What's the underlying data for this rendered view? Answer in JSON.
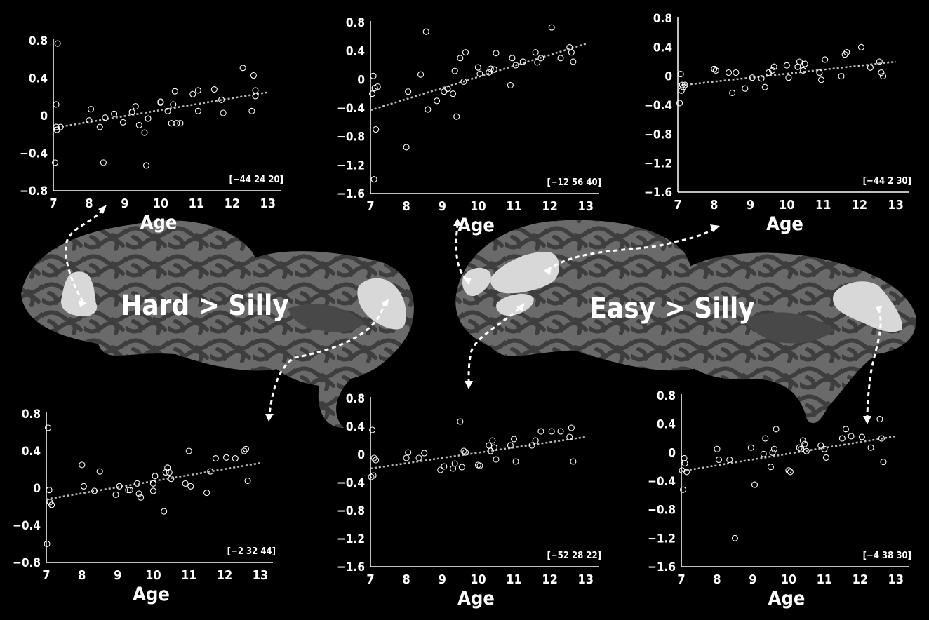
{
  "contrasts": {
    "left": "Hard > Silly",
    "right": "Easy > Silly"
  },
  "colors": {
    "background": "#000000",
    "brain_surface": "#5a5a5a",
    "brain_gyri": "#3a3a3a",
    "roi_fill": "#d8d8d8",
    "axis": "#ffffff",
    "fit_line": "#bbbbbb"
  },
  "chart_data": [
    {
      "type": "scatter",
      "label": "[−44 24 20]",
      "xlabel": "Age",
      "ylabel": "",
      "xlim": [
        7,
        13.2
      ],
      "ylim": [
        -0.8,
        0.8
      ],
      "xticks": [
        "7",
        "8",
        "9",
        "10",
        "11",
        "12",
        "13"
      ],
      "yticks": [
        "0.8",
        "0.4",
        "0",
        "−0.4",
        "−0.8"
      ],
      "fit": {
        "x": [
          7,
          13
        ],
        "y": [
          -0.13,
          0.25
        ]
      },
      "x": [
        7.05,
        7.08,
        7.08,
        7.1,
        7.12,
        7.2,
        8.0,
        8.05,
        8.3,
        8.4,
        8.45,
        8.7,
        8.95,
        9.2,
        9.3,
        9.4,
        9.55,
        9.6,
        9.65,
        10.0,
        10.0,
        10.2,
        10.3,
        10.35,
        10.4,
        10.45,
        10.55,
        10.9,
        11.05,
        11.05,
        11.5,
        11.7,
        11.75,
        12.3,
        12.55,
        12.6,
        12.65,
        12.65
      ],
      "y": [
        -0.5,
        0.12,
        -0.12,
        -0.15,
        0.77,
        -0.12,
        -0.05,
        0.07,
        -0.12,
        -0.5,
        -0.02,
        0.02,
        -0.07,
        0.04,
        0.1,
        -0.1,
        -0.18,
        -0.53,
        -0.03,
        0.15,
        0.14,
        0.05,
        -0.08,
        0.12,
        0.26,
        -0.08,
        -0.08,
        0.23,
        0.27,
        0.05,
        0.28,
        0.17,
        0.03,
        0.51,
        0.05,
        0.43,
        0.27,
        0.21
      ]
    },
    {
      "type": "scatter",
      "label": "[−12 56 40]",
      "xlabel": "Age",
      "ylabel": "",
      "xlim": [
        7,
        13.2
      ],
      "ylim": [
        -1.6,
        0.8
      ],
      "xticks": [
        "7",
        "8",
        "9",
        "10",
        "11",
        "12",
        "13"
      ],
      "yticks": [
        "0.8",
        "0.4",
        "0",
        "−0.4",
        "−0.8",
        "−1.2",
        "−1.6"
      ],
      "fit": {
        "x": [
          7,
          13
        ],
        "y": [
          -0.43,
          0.5
        ]
      },
      "x": [
        7.05,
        7.08,
        7.1,
        7.12,
        7.15,
        7.2,
        8.0,
        8.05,
        8.4,
        8.55,
        8.6,
        8.85,
        9.05,
        9.15,
        9.3,
        9.35,
        9.4,
        9.5,
        9.6,
        9.65,
        10.0,
        10.05,
        10.3,
        10.35,
        10.45,
        10.5,
        10.9,
        10.95,
        11.05,
        11.25,
        11.6,
        11.65,
        11.75,
        12.05,
        12.3,
        12.55,
        12.6,
        12.65
      ],
      "y": [
        -0.2,
        0.05,
        -1.4,
        -0.12,
        -0.7,
        -0.1,
        -0.95,
        -0.17,
        0.07,
        0.67,
        -0.42,
        -0.3,
        -0.17,
        -0.13,
        -0.2,
        0.12,
        -0.52,
        0.3,
        -0.03,
        0.38,
        0.17,
        0.08,
        0.1,
        0.15,
        0.14,
        0.37,
        -0.08,
        0.3,
        0.2,
        0.25,
        0.38,
        0.24,
        0.3,
        0.73,
        0.3,
        0.45,
        0.38,
        0.25
      ]
    },
    {
      "type": "scatter",
      "label": "[−44 2 30]",
      "xlabel": "Age",
      "ylabel": "",
      "xlim": [
        7,
        13.2
      ],
      "ylim": [
        -1.6,
        0.8
      ],
      "xticks": [
        "7",
        "8",
        "9",
        "10",
        "11",
        "12",
        "13"
      ],
      "yticks": [
        "0.8",
        "0.4",
        "0",
        "−0.4",
        "−0.8",
        "−1.2",
        "−1.6"
      ],
      "fit": {
        "x": [
          7,
          13
        ],
        "y": [
          -0.13,
          0.2
        ]
      },
      "x": [
        7.05,
        7.08,
        7.1,
        7.12,
        7.15,
        7.2,
        8.0,
        8.05,
        8.4,
        8.5,
        8.6,
        8.85,
        9.05,
        9.3,
        9.4,
        9.5,
        9.6,
        9.65,
        10.0,
        10.05,
        10.3,
        10.35,
        10.45,
        10.5,
        10.9,
        10.95,
        11.05,
        11.5,
        11.6,
        11.65,
        12.05,
        12.3,
        12.55,
        12.6,
        12.65
      ],
      "y": [
        -0.37,
        0.03,
        -0.2,
        -0.12,
        -0.15,
        -0.12,
        0.1,
        0.08,
        0.05,
        -0.23,
        0.05,
        -0.17,
        -0.02,
        -0.03,
        -0.15,
        0.05,
        0.08,
        0.13,
        0.15,
        -0.02,
        0.13,
        0.2,
        0.08,
        0.17,
        0.05,
        -0.05,
        0.23,
        0.0,
        0.3,
        0.33,
        0.4,
        0.12,
        0.2,
        0.05,
        0.0
      ]
    },
    {
      "type": "scatter",
      "label": "[−2 32 44]",
      "xlabel": "Age",
      "ylabel": "",
      "xlim": [
        7,
        13.2
      ],
      "ylim": [
        -0.8,
        0.8
      ],
      "xticks": [
        "7",
        "8",
        "9",
        "10",
        "11",
        "12",
        "13"
      ],
      "yticks": [
        "0.8",
        "0.4",
        "0",
        "−0.4",
        "−0.8"
      ],
      "fit": {
        "x": [
          7,
          13
        ],
        "y": [
          -0.12,
          0.27
        ]
      },
      "x": [
        7.02,
        7.05,
        7.08,
        7.1,
        7.15,
        8.0,
        8.05,
        8.35,
        8.5,
        8.95,
        9.05,
        9.3,
        9.35,
        9.55,
        9.6,
        9.65,
        10.0,
        10.0,
        10.05,
        10.3,
        10.35,
        10.4,
        10.45,
        10.5,
        10.9,
        11.0,
        11.05,
        11.5,
        11.6,
        11.75,
        12.05,
        12.3,
        12.55,
        12.6,
        12.65
      ],
      "y": [
        -0.6,
        0.65,
        -0.02,
        -0.15,
        -0.18,
        0.25,
        0.02,
        -0.03,
        0.18,
        -0.07,
        0.02,
        -0.02,
        -0.02,
        0.05,
        -0.06,
        -0.1,
        0.05,
        -0.03,
        0.13,
        -0.25,
        0.17,
        0.22,
        0.17,
        0.1,
        0.05,
        0.4,
        0.02,
        -0.05,
        0.18,
        0.32,
        0.33,
        0.32,
        0.4,
        0.42,
        0.08
      ]
    },
    {
      "type": "scatter",
      "label": "[−52 28 22]",
      "xlabel": "Age",
      "ylabel": "",
      "xlim": [
        7,
        13.2
      ],
      "ylim": [
        -1.6,
        0.8
      ],
      "xticks": [
        "7",
        "8",
        "9",
        "10",
        "11",
        "12",
        "13"
      ],
      "yticks": [
        "0.8",
        "0.4",
        "0",
        "−0.4",
        "−0.8",
        "−1.2",
        "−1.6"
      ],
      "fit": {
        "x": [
          7,
          13
        ],
        "y": [
          -0.2,
          0.25
        ]
      },
      "x": [
        7.02,
        7.05,
        7.08,
        7.1,
        7.15,
        8.0,
        8.05,
        8.35,
        8.5,
        8.95,
        9.05,
        9.3,
        9.35,
        9.5,
        9.55,
        9.6,
        9.65,
        10.0,
        10.05,
        10.3,
        10.35,
        10.4,
        10.45,
        10.5,
        10.9,
        11.0,
        11.05,
        11.5,
        11.6,
        11.75,
        12.05,
        12.3,
        12.55,
        12.6,
        12.65
      ],
      "y": [
        -0.32,
        0.35,
        -0.3,
        -0.05,
        -0.08,
        -0.05,
        0.03,
        -0.05,
        0.02,
        -0.22,
        -0.17,
        -0.2,
        -0.13,
        0.47,
        -0.18,
        0.05,
        0.03,
        -0.15,
        -0.16,
        0.13,
        0.05,
        0.2,
        0.1,
        -0.07,
        0.13,
        0.22,
        -0.1,
        0.13,
        0.2,
        0.33,
        0.33,
        0.33,
        0.25,
        0.38,
        -0.1
      ]
    },
    {
      "type": "scatter",
      "label": "[−4 38 30]",
      "xlabel": "Age",
      "ylabel": "",
      "xlim": [
        7,
        13.2
      ],
      "ylim": [
        -1.6,
        0.8
      ],
      "xticks": [
        "7",
        "8",
        "9",
        "10",
        "11",
        "12",
        "13"
      ],
      "yticks": [
        "0.8",
        "0.4",
        "0",
        "−0.4",
        "−0.8",
        "−1.2",
        "−1.6"
      ],
      "fit": {
        "x": [
          7,
          13
        ],
        "y": [
          -0.26,
          0.23
        ]
      },
      "x": [
        7.02,
        7.05,
        7.08,
        7.1,
        7.15,
        8.0,
        8.05,
        8.35,
        8.5,
        8.95,
        9.05,
        9.3,
        9.35,
        9.5,
        9.55,
        9.6,
        9.65,
        10.0,
        10.05,
        10.3,
        10.35,
        10.4,
        10.45,
        10.5,
        10.9,
        11.0,
        11.05,
        11.5,
        11.6,
        11.75,
        12.05,
        12.3,
        12.55,
        12.6,
        12.65
      ],
      "y": [
        -0.25,
        -0.52,
        -0.08,
        -0.15,
        -0.27,
        0.05,
        -0.1,
        -0.1,
        -1.2,
        0.07,
        -0.45,
        -0.02,
        0.2,
        -0.2,
        0.0,
        0.05,
        0.33,
        -0.25,
        -0.27,
        0.07,
        0.05,
        0.17,
        0.12,
        0.02,
        0.1,
        0.05,
        -0.07,
        0.2,
        0.33,
        0.23,
        0.22,
        0.07,
        0.47,
        0.2,
        -0.13
      ]
    }
  ]
}
